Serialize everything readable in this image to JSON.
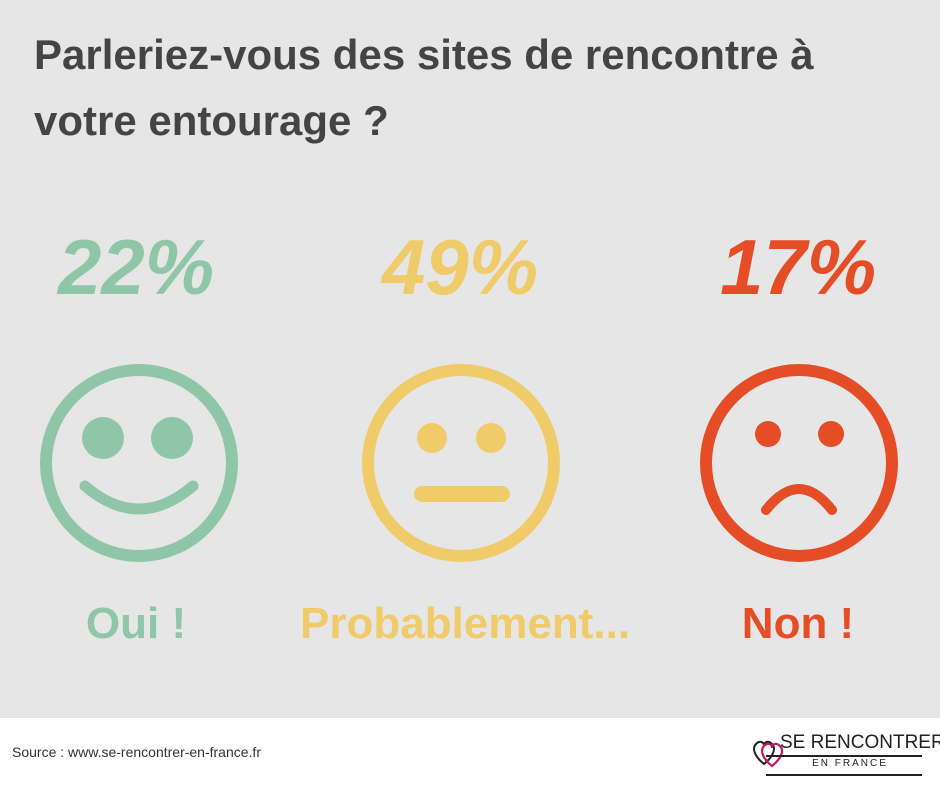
{
  "title": "Parleriez-vous des sites de rencontre à votre entourage ?",
  "colors": {
    "oui": "#8fc6a8",
    "probablement": "#f0cb6a",
    "non": "#e44d26"
  },
  "chart_data": {
    "type": "pictogram",
    "title": "Parleriez-vous des sites de rencontre à votre entourage ?",
    "categories": [
      "Oui !",
      "Probablement...",
      "Non !"
    ],
    "values": [
      22,
      49,
      17
    ],
    "value_labels": [
      "22%",
      "49%",
      "17%"
    ],
    "icons": [
      "happy-face-icon",
      "neutral-face-icon",
      "sad-face-icon"
    ]
  },
  "footer": {
    "source": "Source : www.se-rencontrer-en-france.fr",
    "logo_main": "SE RENCONTRER",
    "logo_sub": "EN FRANCE"
  }
}
